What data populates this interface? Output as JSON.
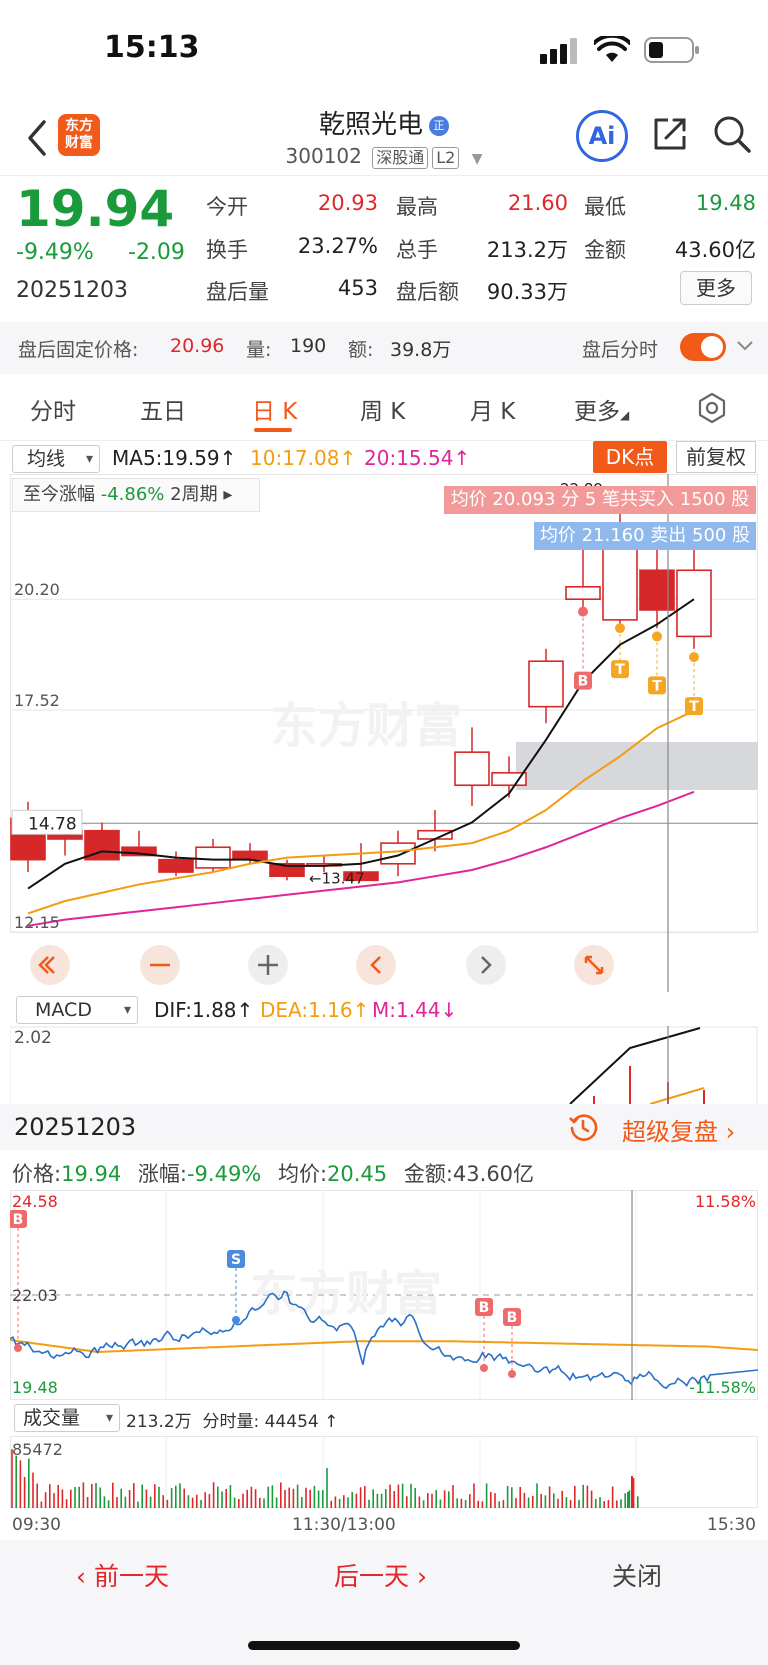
{
  "status_bar": {
    "time": "15:13"
  },
  "header": {
    "logo_text_1": "东方",
    "logo_text_2": "财富",
    "stock_name": "乾照光电",
    "stock_badge": "正",
    "stock_code": "300102",
    "tag_market": "深股通",
    "tag_level": "L2",
    "ai_label": "Ai"
  },
  "quote": {
    "price": "19.94",
    "change_pct": "-9.49%",
    "change": "-2.09",
    "date": "20251203",
    "open_label": "今开",
    "open": "20.93",
    "high_label": "最高",
    "high": "21.60",
    "low_label": "最低",
    "low": "19.48",
    "turnover_label": "换手",
    "turnover": "23.27%",
    "volume_label": "总手",
    "volume": "213.2万",
    "amount_label": "金额",
    "amount": "43.60亿",
    "ah_vol_label": "盘后量",
    "ah_vol": "453",
    "ah_amt_label": "盘后额",
    "ah_amt": "90.33万",
    "more_label": "更多"
  },
  "after_hours": {
    "fixed_price_label": "盘后固定价格:",
    "fixed_price": "20.96",
    "qty_label": "量:",
    "qty": "190",
    "amt_label": "额:",
    "amt": "39.8万",
    "timeshare_label": "盘后分时"
  },
  "tabs": [
    "分时",
    "五日",
    "日 K",
    "周 K",
    "月 K",
    "更多"
  ],
  "kline_toolbar": {
    "ma_select": "均线",
    "ma5": "MA5:19.59",
    "ma10": "10:17.08",
    "ma20": "20:15.54",
    "dk_label": "DK点",
    "fq_label": "前复权",
    "since_label": "至今涨幅",
    "since_value": "-4.86%",
    "since_period": "2周期",
    "buy_note": "均价 20.093 分 5 笔共买入 1500 股",
    "sell_note": "均价 21.160 卖出 500 股"
  },
  "chart_data": [
    {
      "type": "candlestick",
      "y_ticks": [
        "20.20",
        "17.52",
        "14.78",
        "12.15"
      ],
      "ylim": [
        12.15,
        22.89
      ],
      "annotations": {
        "high": "22.89",
        "low": "13.47"
      },
      "candles": [
        {
          "o": 14.9,
          "h": 15.3,
          "l": 13.6,
          "c": 13.9
        },
        {
          "o": 14.6,
          "h": 14.9,
          "l": 14.0,
          "c": 14.4
        },
        {
          "o": 14.6,
          "h": 14.8,
          "l": 13.9,
          "c": 13.9
        },
        {
          "o": 14.2,
          "h": 14.6,
          "l": 14.0,
          "c": 14.0
        },
        {
          "o": 13.9,
          "h": 14.1,
          "l": 13.5,
          "c": 13.6
        },
        {
          "o": 13.7,
          "h": 14.4,
          "l": 13.6,
          "c": 14.2
        },
        {
          "o": 14.1,
          "h": 14.3,
          "l": 13.8,
          "c": 13.9
        },
        {
          "o": 13.8,
          "h": 13.9,
          "l": 13.4,
          "c": 13.5
        },
        {
          "o": 13.8,
          "h": 14.0,
          "l": 13.6,
          "c": 13.8
        },
        {
          "o": 13.6,
          "h": 14.3,
          "l": 13.4,
          "c": 13.4
        },
        {
          "o": 13.8,
          "h": 14.6,
          "l": 13.5,
          "c": 14.3
        },
        {
          "o": 14.4,
          "h": 15.1,
          "l": 14.1,
          "c": 14.6
        },
        {
          "o": 15.7,
          "h": 17.1,
          "l": 15.2,
          "c": 16.5
        },
        {
          "o": 15.7,
          "h": 16.4,
          "l": 15.4,
          "c": 16.0
        },
        {
          "o": 17.6,
          "h": 19.0,
          "l": 17.2,
          "c": 18.7
        },
        {
          "o": 20.2,
          "h": 21.8,
          "l": 19.8,
          "c": 20.5
        },
        {
          "o": 19.7,
          "h": 22.89,
          "l": 19.4,
          "c": 21.6
        },
        {
          "o": 20.9,
          "h": 21.6,
          "l": 19.5,
          "c": 19.94
        },
        {
          "o": 19.3,
          "h": 21.6,
          "l": 19.0,
          "c": 20.9
        }
      ],
      "ma5": [
        13.2,
        13.8,
        14.1,
        14.05,
        13.95,
        13.9,
        13.9,
        13.75,
        13.75,
        13.8,
        14.0,
        14.4,
        14.8,
        15.5,
        16.8,
        18.2,
        19.1,
        19.59,
        20.2
      ],
      "ma10": [
        12.6,
        12.9,
        13.1,
        13.3,
        13.45,
        13.6,
        13.8,
        13.95,
        14.0,
        14.05,
        14.1,
        14.2,
        14.3,
        14.6,
        15.1,
        15.8,
        16.4,
        17.08,
        17.5
      ],
      "ma20": [
        12.3,
        12.45,
        12.55,
        12.65,
        12.75,
        12.85,
        12.95,
        13.05,
        13.15,
        13.25,
        13.35,
        13.5,
        13.65,
        13.9,
        14.2,
        14.55,
        14.9,
        15.2,
        15.54
      ],
      "trade_marks": [
        "B",
        "T",
        "T",
        "T"
      ]
    },
    {
      "type": "line",
      "name": "MACD",
      "y_ticks": [
        "2.02"
      ],
      "dif": "DIF:1.88",
      "dea": "DEA:1.16",
      "m": "M:1.44"
    },
    {
      "type": "line",
      "name": "intraday",
      "y_ticks": [
        "24.58",
        "22.03",
        "19.48"
      ],
      "pct_ticks": [
        "11.58%",
        "-11.58%"
      ],
      "x_ticks": [
        "09:30",
        "11:30/13:00",
        "15:30"
      ],
      "trade_marks": [
        "B",
        "S",
        "B",
        "B"
      ]
    },
    {
      "type": "bar",
      "name": "成交量",
      "y_ticks": [
        "85472"
      ]
    }
  ],
  "macd_toolbar": {
    "select": "MACD",
    "dif": "DIF:1.88",
    "dea": "DEA:1.16",
    "m": "M:1.44"
  },
  "replay": {
    "date": "20251203",
    "link": "超级复盘",
    "price_label": "价格:",
    "price": "19.94",
    "chg_label": "涨幅:",
    "chg": "-9.49%",
    "avg_label": "均价:",
    "avg": "20.45",
    "amt_label": "金额:",
    "amt": "43.60亿",
    "y_top": "24.58",
    "y_mid": "22.03",
    "y_bottom": "19.48",
    "pct_top": "11.58%",
    "pct_bottom": "-11.58%",
    "vol_select": "成交量",
    "vol_total": "213.2万",
    "vol_tick_label": "分时量: 44454",
    "vol_max": "85472",
    "t_start": "09:30",
    "t_mid": "11:30/13:00",
    "t_end": "15:30"
  },
  "bottom": {
    "prev": "前一天",
    "next": "后一天",
    "close": "关闭"
  }
}
